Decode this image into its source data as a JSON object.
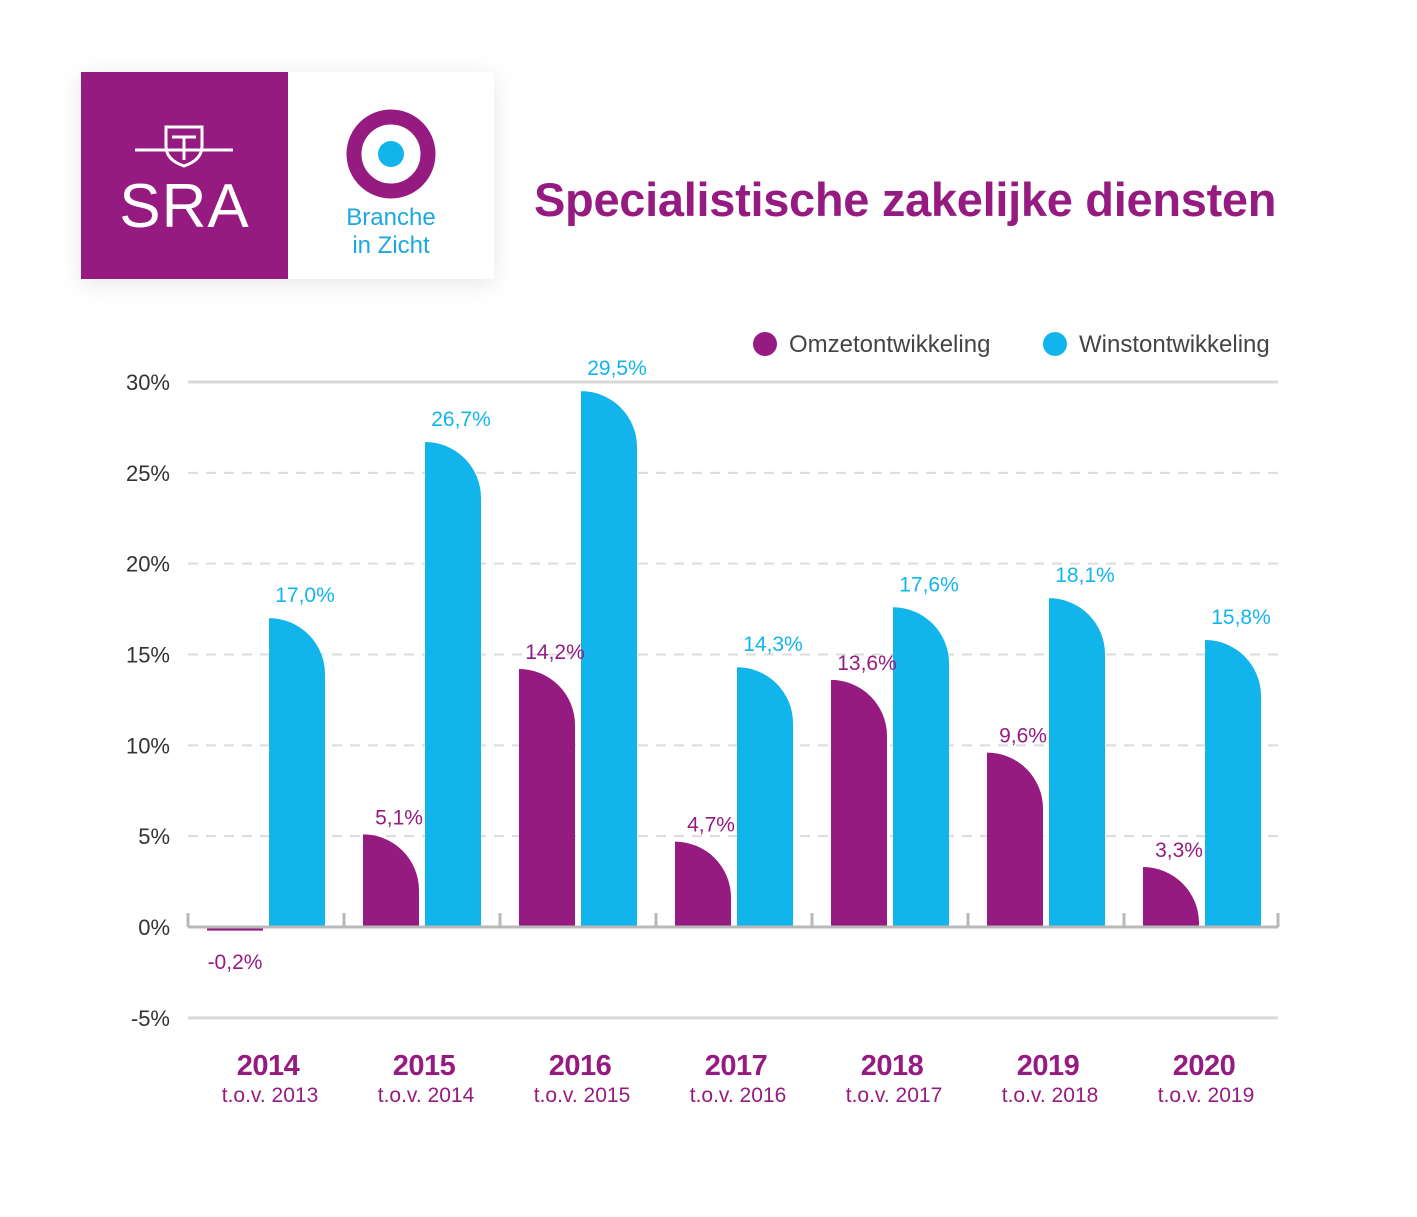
{
  "logo": {
    "sra_text": "SRA",
    "branch_line1": "Branche",
    "branch_line2": "in Zicht"
  },
  "page_title": "Specialistische zakelijke diensten",
  "colors": {
    "brand_purple": "#951b81",
    "brand_blue": "#12b5eb",
    "grid": "#d6d6d6",
    "axis": "#b8b8b8",
    "tick_text": "#333333"
  },
  "chart_data": {
    "type": "bar",
    "title": "Specialistische zakelijke diensten",
    "categories": [
      "2014",
      "2015",
      "2016",
      "2017",
      "2018",
      "2019",
      "2020"
    ],
    "subcategories": [
      "t.o.v. 2013",
      "t.o.v. 2014",
      "t.o.v. 2015",
      "t.o.v. 2016",
      "t.o.v. 2017",
      "t.o.v. 2018",
      "t.o.v. 2019"
    ],
    "series": [
      {
        "name": "Omzetontwikkeling",
        "color": "#951b81",
        "values": [
          -0.2,
          5.1,
          14.2,
          4.7,
          13.6,
          9.6,
          3.3
        ],
        "labels": [
          "-0,2%",
          "5,1%",
          "14,2%",
          "4,7%",
          "13,6%",
          "9,6%",
          "3,3%"
        ]
      },
      {
        "name": "Winstontwikkeling",
        "color": "#12b5eb",
        "values": [
          17.0,
          26.7,
          29.5,
          14.3,
          17.6,
          18.1,
          15.8
        ],
        "labels": [
          "17,0%",
          "26,7%",
          "29,5%",
          "14,3%",
          "17,6%",
          "18,1%",
          "15,8%"
        ]
      }
    ],
    "ylim": [
      -5,
      30
    ],
    "yticks": [
      30,
      25,
      20,
      15,
      10,
      5,
      0,
      -5
    ],
    "ytick_labels": [
      "30%",
      "25%",
      "20%",
      "15%",
      "10%",
      "5%",
      "0%",
      "-5%"
    ],
    "grid": true,
    "legend_position": "top-right"
  }
}
